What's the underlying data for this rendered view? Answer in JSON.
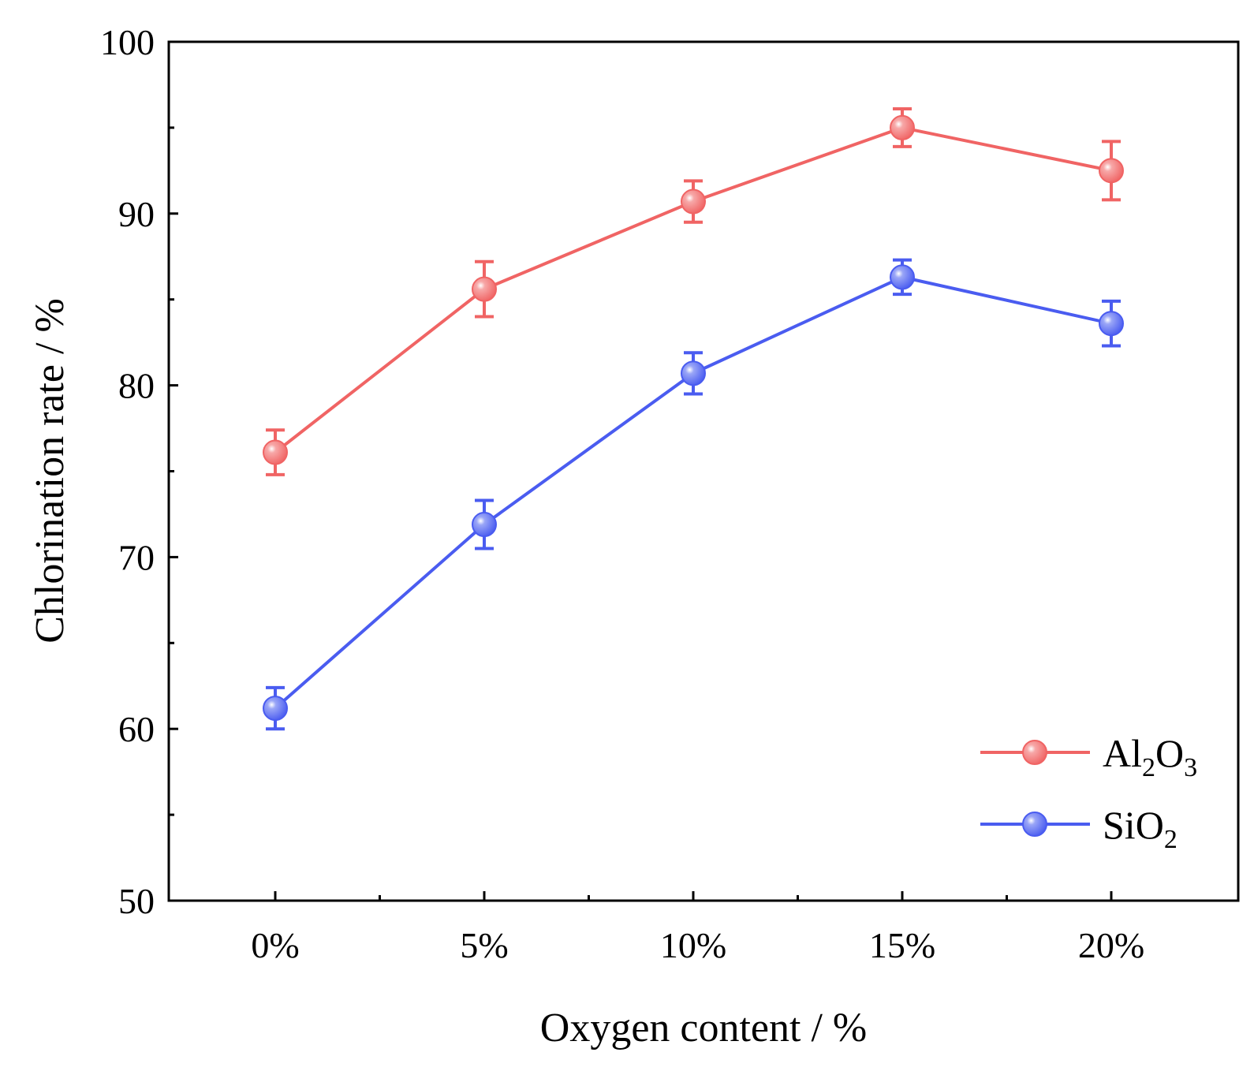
{
  "chart_data": {
    "type": "line",
    "title": "",
    "xlabel": "Oxygen content / %",
    "ylabel": "Chlorination rate / %",
    "categories": [
      "0%",
      "5%",
      "10%",
      "15%",
      "20%"
    ],
    "ylim": [
      50,
      100
    ],
    "yticks": [
      50,
      60,
      70,
      80,
      90,
      100
    ],
    "ytick_labels": [
      "50",
      "60",
      "70",
      "80",
      "90",
      "100"
    ],
    "grid": false,
    "legend_position": "bottom-right",
    "series": [
      {
        "name": "Al2O3",
        "label_parts": {
          "base1": "Al",
          "sub1": "2",
          "base2": "O",
          "sub2": "3"
        },
        "color": "#f06464",
        "values": [
          76.1,
          85.6,
          90.7,
          95.0,
          92.5
        ],
        "errors": [
          1.3,
          1.6,
          1.2,
          1.1,
          1.7
        ]
      },
      {
        "name": "SiO2",
        "label_parts": {
          "base1": "SiO",
          "sub1": "2",
          "base2": "",
          "sub2": ""
        },
        "color": "#4a5cf0",
        "values": [
          61.2,
          71.9,
          80.7,
          86.3,
          83.6
        ],
        "errors": [
          1.2,
          1.4,
          1.2,
          1.0,
          1.3
        ]
      }
    ]
  }
}
